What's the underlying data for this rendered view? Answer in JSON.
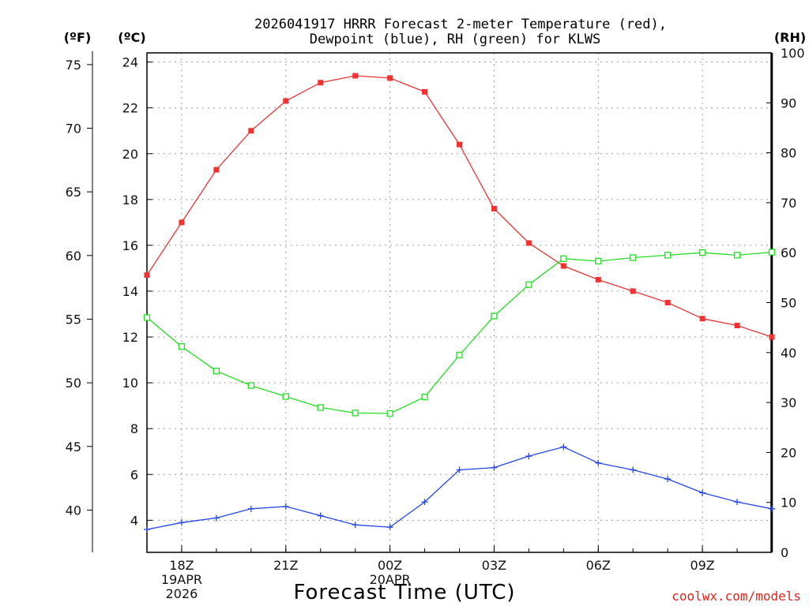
{
  "chart_data": {
    "type": "line",
    "title": [
      "2026041917 HRRR Forecast 2-meter Temperature (red),",
      "Dewpoint (blue), RH (green) for KLWS"
    ],
    "xlabel": "Forecast Time (UTC)",
    "credit": "coolwx.com/models",
    "units": {
      "f": "(ºF)",
      "c": "(ºC)",
      "rh": "(RH)"
    },
    "x": [
      17,
      18,
      19,
      20,
      21,
      22,
      23,
      24,
      25,
      26,
      27,
      28,
      29,
      30,
      31,
      32,
      33,
      34,
      35
    ],
    "xlim": [
      17,
      35
    ],
    "xticks": [
      {
        "x": 18,
        "lines": [
          "18Z",
          "19APR",
          "2026"
        ]
      },
      {
        "x": 21,
        "lines": [
          "21Z"
        ]
      },
      {
        "x": 24,
        "lines": [
          "00Z",
          "20APR"
        ]
      },
      {
        "x": 27,
        "lines": [
          "03Z"
        ]
      },
      {
        "x": 30,
        "lines": [
          "06Z"
        ]
      },
      {
        "x": 33,
        "lines": [
          "09Z"
        ]
      }
    ],
    "c_axis": {
      "ylim": [
        2.6,
        24.4
      ],
      "ticks": [
        4,
        6,
        8,
        10,
        12,
        14,
        16,
        18,
        20,
        22,
        24
      ]
    },
    "f_axis": {
      "ticks": [
        40,
        45,
        50,
        55,
        60,
        65,
        70,
        75
      ]
    },
    "rh_axis": {
      "ylim": [
        0,
        100
      ],
      "ticks": [
        0,
        10,
        20,
        30,
        40,
        50,
        60,
        70,
        80,
        90,
        100
      ]
    },
    "series": [
      {
        "name": "Temperature",
        "axis": "c",
        "color": "#ee3333",
        "marker": "filled-square",
        "values": [
          14.7,
          17.0,
          19.3,
          21.0,
          22.3,
          23.1,
          23.4,
          23.3,
          22.7,
          20.4,
          17.6,
          16.1,
          15.1,
          14.5,
          14.0,
          13.5,
          12.8,
          12.5,
          12.0
        ]
      },
      {
        "name": "Dewpoint",
        "axis": "c",
        "color": "#2244ee",
        "marker": "plus",
        "values": [
          3.6,
          3.9,
          4.1,
          4.5,
          4.6,
          4.2,
          3.8,
          3.7,
          4.8,
          6.2,
          6.3,
          6.8,
          7.2,
          6.5,
          6.2,
          5.8,
          5.2,
          4.8,
          4.5
        ]
      },
      {
        "name": "RH",
        "axis": "rh",
        "color": "#22dd22",
        "marker": "open-square",
        "values": [
          47.0,
          41.2,
          36.3,
          33.4,
          31.2,
          29.0,
          27.9,
          27.8,
          31.1,
          39.5,
          47.3,
          53.6,
          58.8,
          58.3,
          59.0,
          59.5,
          60.0,
          59.5,
          60.1
        ]
      }
    ]
  }
}
